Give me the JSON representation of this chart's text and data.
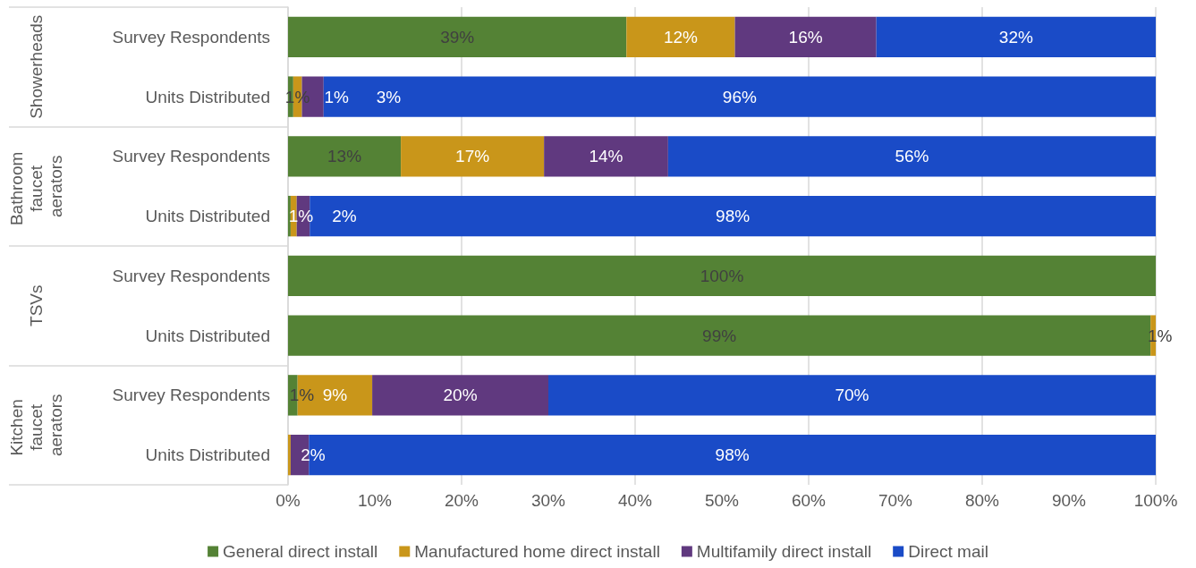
{
  "chart_data": {
    "type": "bar",
    "orientation": "horizontal",
    "stacked": true,
    "categories": [
      "Survey Respondents",
      "Units Distributed",
      "Survey Respondents",
      "Units Distributed",
      "Survey Respondents",
      "Units Distributed",
      "Survey Respondents",
      "Units Distributed"
    ],
    "annotations": [
      "Showerheads",
      "Bathroom faucet aerators",
      "TSVs",
      "Kitchen faucet aerators"
    ],
    "series": [
      {
        "name": "General direct install",
        "color": "#548235",
        "values": [
          39,
          0.6,
          13,
          0.3,
          100,
          99.4,
          1.1,
          0
        ],
        "value_labels": [
          "39%",
          "1%",
          "13%",
          null,
          "100%",
          "99%",
          "1%",
          null
        ]
      },
      {
        "name": "Manufactured home direct install",
        "color": "#c9961a",
        "values": [
          12.5,
          1.0,
          16.5,
          0.7,
          0,
          0.6,
          8.6,
          0.3
        ],
        "value_labels": [
          "12%",
          "1%",
          "17%",
          "1%",
          null,
          "1%",
          "9%",
          null
        ]
      },
      {
        "name": "Multifamily direct install",
        "color": "#60397f",
        "values": [
          16.3,
          2.5,
          14.3,
          1.5,
          0,
          0,
          20.3,
          2.1
        ],
        "value_labels": [
          "16%",
          "3%",
          "14%",
          "2%",
          null,
          null,
          "20%",
          "2%"
        ]
      },
      {
        "name": "Direct mail",
        "color": "#1a4bc7",
        "values": [
          32.2,
          95.9,
          56.2,
          97.5,
          0,
          0,
          70,
          97.6
        ],
        "value_labels": [
          "32%",
          "96%",
          "56%",
          "98%",
          null,
          null,
          "70%",
          "98%"
        ]
      }
    ],
    "xlim": [
      0,
      100
    ],
    "xticks": [
      {
        "value": 0,
        "label": "0%"
      },
      {
        "value": 10,
        "label": "10%"
      },
      {
        "value": 20,
        "label": "20%"
      },
      {
        "value": 30,
        "label": "30%"
      },
      {
        "value": 40,
        "label": "40%"
      },
      {
        "value": 50,
        "label": "50%"
      },
      {
        "value": 60,
        "label": "60%"
      },
      {
        "value": 70,
        "label": "70%"
      },
      {
        "value": 80,
        "label": "80%"
      },
      {
        "value": 90,
        "label": "90%"
      },
      {
        "value": 100,
        "label": "100%"
      }
    ],
    "grid": "x",
    "legend": "bottom"
  }
}
